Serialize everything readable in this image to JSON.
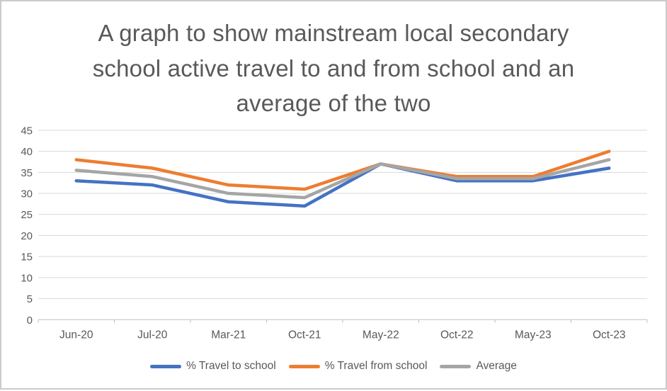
{
  "window": {
    "background": "#ffffff",
    "border_color": "#cbcbcb"
  },
  "chart_data": {
    "type": "line",
    "title": "A graph to show mainstream local secondary school active travel to and from school and an average of the two",
    "categories": [
      "Jun-20",
      "Jul-20",
      "Mar-21",
      "Oct-21",
      "May-22",
      "Oct-22",
      "May-23",
      "Oct-23"
    ],
    "series": [
      {
        "name": "% Travel to school",
        "color": "#4472C4",
        "values": [
          33,
          32,
          28,
          27,
          37,
          33,
          33,
          36
        ]
      },
      {
        "name": "% Travel from school",
        "color": "#ED7D31",
        "values": [
          38,
          36,
          32,
          31,
          37,
          34,
          34,
          40
        ]
      },
      {
        "name": "Average",
        "color": "#A5A5A5",
        "values": [
          35.5,
          34,
          30,
          29,
          37,
          33.5,
          33.5,
          38
        ]
      }
    ],
    "y_axis": {
      "min": 0,
      "max": 45,
      "step": 5,
      "ticks": [
        0,
        5,
        10,
        15,
        20,
        25,
        30,
        35,
        40,
        45
      ]
    },
    "xlabel": "",
    "ylabel": "",
    "grid": true,
    "legend_position": "bottom"
  },
  "styles": {
    "title_color": "#595959",
    "axis_text_color": "#595959",
    "gridline_color": "#D9D9D9",
    "axis_line_color": "#BFBFBF",
    "line_width": 4.5
  }
}
